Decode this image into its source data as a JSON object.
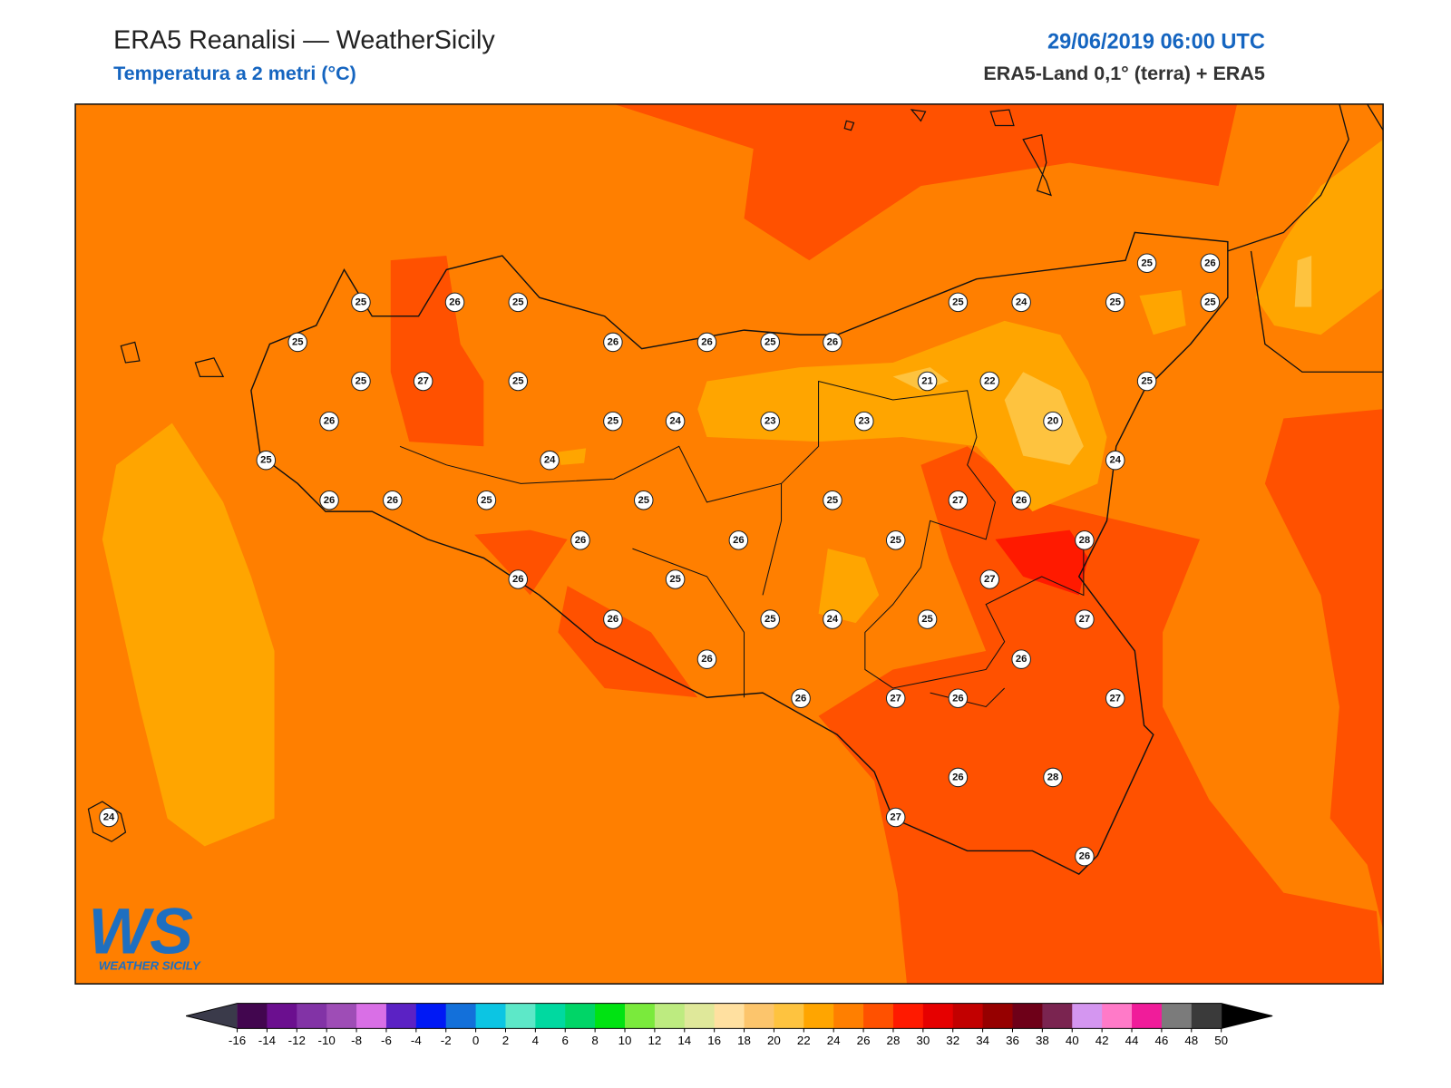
{
  "header": {
    "title": "ERA5 Reanalisi — WeatherSicily",
    "subtitle": "Temperatura a 2 metri (°C)",
    "date": "29/06/2019 06:00 UTC",
    "source": "ERA5-Land 0,1° (terra) + ERA5"
  },
  "logo": {
    "mark": "WS",
    "name": "WEATHER SICILY"
  },
  "stations": [
    25,
    26,
    25,
    25,
    25,
    27,
    25,
    26,
    25,
    26,
    26,
    25,
    24,
    26,
    26,
    26,
    26,
    25,
    26,
    25,
    24,
    23,
    23,
    25,
    26,
    25,
    26,
    26,
    25,
    24,
    25,
    25,
    25,
    26,
    27,
    26,
    27,
    26,
    27,
    28,
    27,
    26,
    27,
    26,
    28,
    27,
    26,
    21,
    22,
    20,
    25,
    24,
    25,
    24,
    25,
    25,
    25,
    26,
    24
  ],
  "colorbar": {
    "ticks": [
      -16,
      -14,
      -12,
      -10,
      -8,
      -6,
      -4,
      -2,
      0,
      2,
      4,
      6,
      8,
      10,
      12,
      14,
      16,
      18,
      20,
      22,
      24,
      26,
      28,
      30,
      32,
      34,
      36,
      38,
      40,
      42,
      44,
      46,
      48,
      50
    ],
    "colors": [
      "#42064f",
      "#6b0f8f",
      "#8233a6",
      "#9e4db6",
      "#d96fe6",
      "#5b22c4",
      "#0019f5",
      "#1370da",
      "#0cc5e3",
      "#5de8c8",
      "#00d9a0",
      "#00d567",
      "#00e312",
      "#7aea3c",
      "#bdeb80",
      "#dfe89a",
      "#ffe0a0",
      "#fcc56c",
      "#fec33f",
      "#ffa500",
      "#ff7f00",
      "#ff5100",
      "#ff1a00",
      "#e60000",
      "#c20000",
      "#960000",
      "#6e0018",
      "#7a2450",
      "#d496f0",
      "#ff7ac8",
      "#f01c9a",
      "#7b7b7b",
      "#3a3a3a"
    ]
  }
}
